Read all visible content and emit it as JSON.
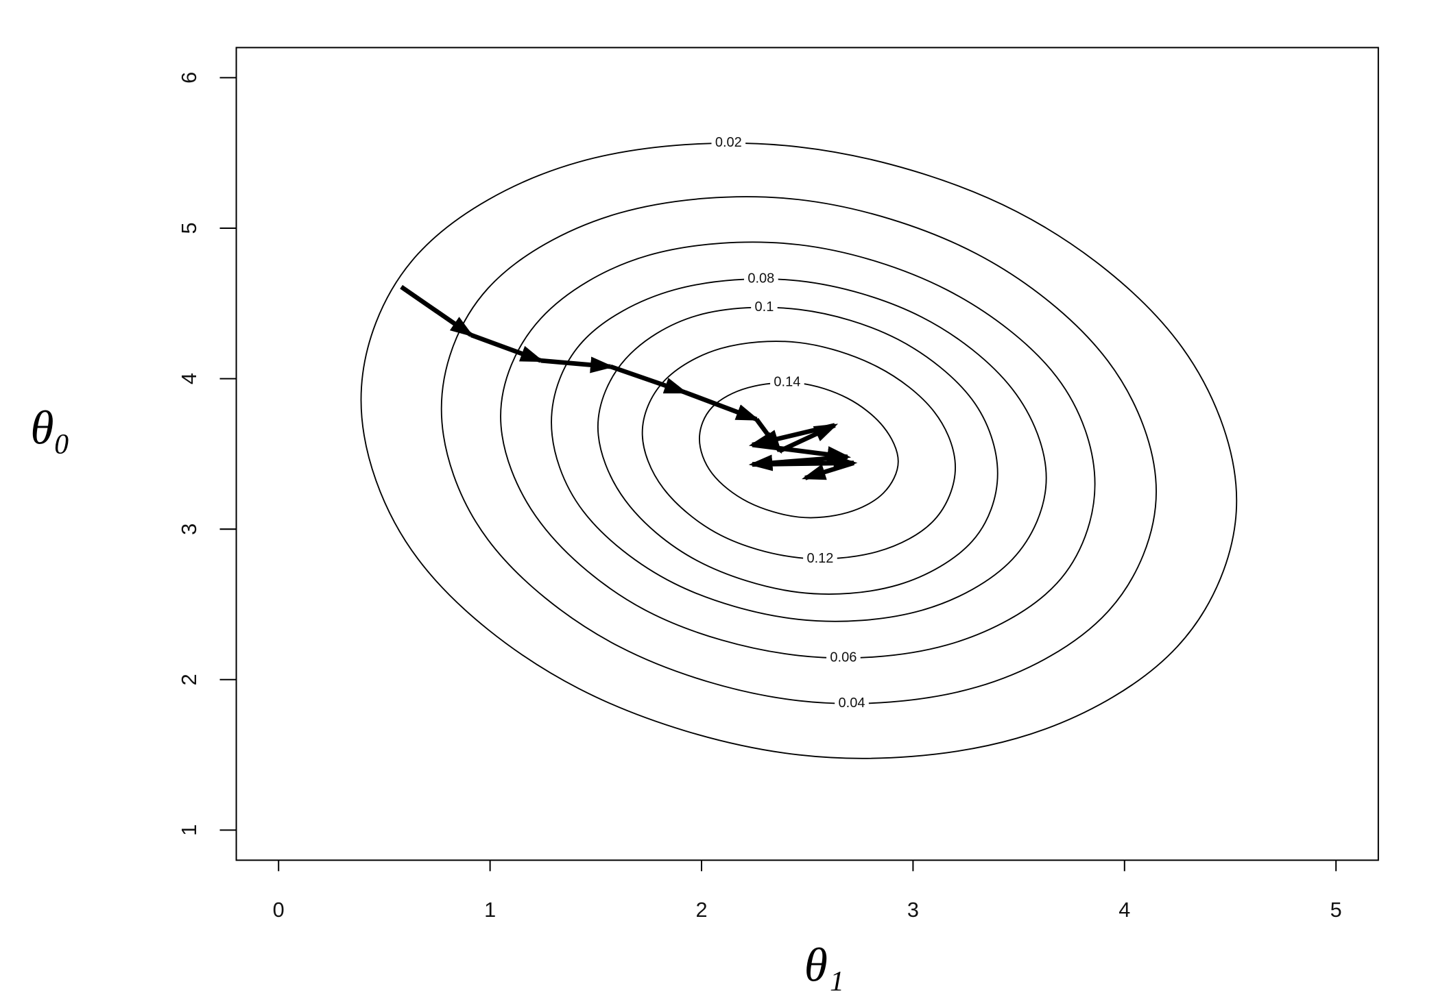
{
  "chart_data": {
    "type": "contour",
    "xlabel": "θ₁",
    "ylabel": "θ₀",
    "xlim": [
      -0.2,
      5.2
    ],
    "ylim": [
      0.8,
      6.2
    ],
    "xticks": [
      0,
      1,
      2,
      3,
      4,
      5
    ],
    "yticks": [
      1,
      2,
      3,
      4,
      5,
      6
    ],
    "color": "#000000",
    "contours": [
      {
        "level": 0.02,
        "x": [
          4.53,
          4.25,
          3.49,
          2.46,
          1.42,
          0.66,
          0.39,
          0.66,
          1.42,
          2.46,
          3.49,
          4.25
        ],
        "y": [
          3.19,
          4.25,
          5.11,
          5.54,
          5.44,
          4.83,
          3.86,
          2.8,
          1.94,
          1.5,
          1.61,
          2.22
        ]
      },
      {
        "level": 0.04,
        "x": [
          4.15,
          3.92,
          3.3,
          2.46,
          1.61,
          0.99,
          0.77,
          0.99,
          1.61,
          2.46,
          3.3,
          3.92
        ],
        "y": [
          3.25,
          4.12,
          4.83,
          5.19,
          5.1,
          4.6,
          3.8,
          2.93,
          2.22,
          1.86,
          1.95,
          2.45
        ]
      },
      {
        "level": 0.06,
        "x": [
          3.86,
          3.68,
          3.16,
          2.46,
          1.75,
          1.24,
          1.05,
          1.24,
          1.75,
          2.46,
          3.16,
          3.68
        ],
        "y": [
          3.3,
          4.01,
          4.59,
          4.89,
          4.82,
          4.4,
          3.75,
          3.04,
          2.45,
          2.16,
          2.23,
          2.64
        ]
      },
      {
        "level": 0.08,
        "x": [
          3.63,
          3.47,
          3.04,
          2.46,
          1.87,
          1.44,
          1.29,
          1.44,
          1.87,
          2.46,
          3.04,
          3.47
        ],
        "y": [
          3.34,
          3.93,
          4.41,
          4.65,
          4.59,
          4.25,
          3.71,
          3.12,
          2.64,
          2.4,
          2.46,
          2.8
        ]
      },
      {
        "level": 0.1,
        "x": [
          3.4,
          3.28,
          2.93,
          2.46,
          1.98,
          1.64,
          1.51,
          1.64,
          1.98,
          2.46,
          2.93,
          3.28
        ],
        "y": [
          3.37,
          3.86,
          4.26,
          4.46,
          4.42,
          4.13,
          3.68,
          3.19,
          2.79,
          2.58,
          2.63,
          2.92
        ]
      },
      {
        "level": 0.12,
        "x": [
          3.2,
          3.1,
          2.83,
          2.46,
          2.09,
          1.82,
          1.72,
          1.82,
          2.09,
          2.46,
          2.83,
          3.1
        ],
        "y": [
          3.41,
          3.78,
          4.08,
          4.24,
          4.2,
          3.98,
          3.64,
          3.27,
          2.96,
          2.81,
          2.85,
          3.06
        ]
      },
      {
        "level": 0.14,
        "x": [
          2.93,
          2.86,
          2.69,
          2.46,
          2.22,
          2.05,
          1.99,
          2.05,
          2.22,
          2.46,
          2.69,
          2.86
        ],
        "y": [
          3.45,
          3.68,
          3.87,
          3.97,
          3.94,
          3.81,
          3.6,
          3.37,
          3.18,
          3.08,
          3.11,
          3.24
        ]
      }
    ],
    "path": {
      "x": [
        0.58,
        0.91,
        1.24,
        1.57,
        1.92,
        2.26,
        2.37,
        2.63,
        2.24,
        2.69,
        2.24,
        2.72,
        2.49
      ],
      "y": [
        4.61,
        4.29,
        4.12,
        4.08,
        3.91,
        3.73,
        3.52,
        3.69,
        3.56,
        3.48,
        3.43,
        3.44,
        3.34
      ]
    }
  }
}
